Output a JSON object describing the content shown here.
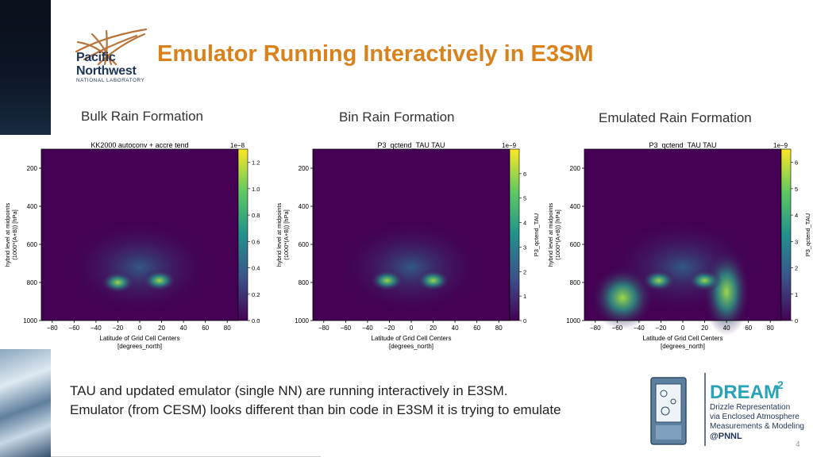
{
  "header": {
    "logo_line1": "Pacific",
    "logo_line2": "Northwest",
    "logo_line3": "NATIONAL LABORATORY",
    "title": "Emulator Running Interactively in E3SM"
  },
  "subtitles": [
    "Bulk Rain Formation",
    "Bin Rain Formation",
    "Emulated Rain Formation"
  ],
  "body": {
    "line1": "TAU and updated emulator (single NN) are running interactively in E3SM.",
    "line2": "Emulator (from CESM) looks different than bin code in E3SM it is trying to emulate"
  },
  "dream_logo": {
    "title": "DREAM",
    "sup": "2",
    "l1": "Drizzle Representation",
    "l2": "via Enclosed Atmosphere",
    "l3": "Measurements & Modeling",
    "l4": "@PNNL"
  },
  "page_number": "4",
  "chart_data": [
    {
      "type": "heatmap",
      "title": "KK2000 autoconv + accre tend",
      "xlabel": "Latitude of Grid Cell Centers\n[degrees_north]",
      "ylabel": "hybrid level at midpoints\n(1000*(A+B)) [hPa]",
      "xlim": [
        -90,
        90
      ],
      "ylim": [
        1000,
        100
      ],
      "xticks": [
        "−80",
        "−60",
        "−40",
        "−20",
        "0",
        "20",
        "40",
        "60",
        "80"
      ],
      "yticks": [
        "200",
        "400",
        "600",
        "800",
        "1000"
      ],
      "colorbar": {
        "label": "",
        "exponent": "1e−8",
        "ticks": [
          "0.0",
          "0.2",
          "0.4",
          "0.6",
          "0.8",
          "1.0",
          "1.2"
        ],
        "min": 0,
        "max": 1.3
      },
      "colormap": "viridis"
    },
    {
      "type": "heatmap",
      "title": "P3_qctend_TAU TAU",
      "xlabel": "Latitude of Grid Cell Centers\n[degrees_north]",
      "ylabel": "hybrid level at midpoints\n(1000*(A+B)) [hPa]",
      "xlim": [
        -90,
        90
      ],
      "ylim": [
        1000,
        100
      ],
      "xticks": [
        "−80",
        "−60",
        "−40",
        "−20",
        "0",
        "20",
        "40",
        "60",
        "80"
      ],
      "yticks": [
        "200",
        "400",
        "600",
        "800",
        "1000"
      ],
      "colorbar": {
        "label": "P3_qctend_TAU",
        "exponent": "1e−9",
        "ticks": [
          "0",
          "1",
          "2",
          "3",
          "4",
          "5",
          "6"
        ],
        "min": 0,
        "max": 7
      },
      "colormap": "viridis"
    },
    {
      "type": "heatmap",
      "title": "P3_qctend_TAU TAU",
      "xlabel": "Latitude of Grid Cell Centers\n[degrees_north]",
      "ylabel": "hybrid level at midpoints\n(1000*(A+B)) [hPa]",
      "xlim": [
        -90,
        90
      ],
      "ylim": [
        1000,
        100
      ],
      "xticks": [
        "−80",
        "−60",
        "−40",
        "−20",
        "0",
        "20",
        "40",
        "60",
        "80"
      ],
      "yticks": [
        "200",
        "400",
        "600",
        "800",
        "1000"
      ],
      "colorbar": {
        "label": "P3_qctend_TAU",
        "exponent": "1e−9",
        "ticks": [
          "0",
          "1",
          "2",
          "3",
          "4",
          "5",
          "6"
        ],
        "min": 0,
        "max": 6.5
      },
      "colormap": "viridis"
    }
  ]
}
